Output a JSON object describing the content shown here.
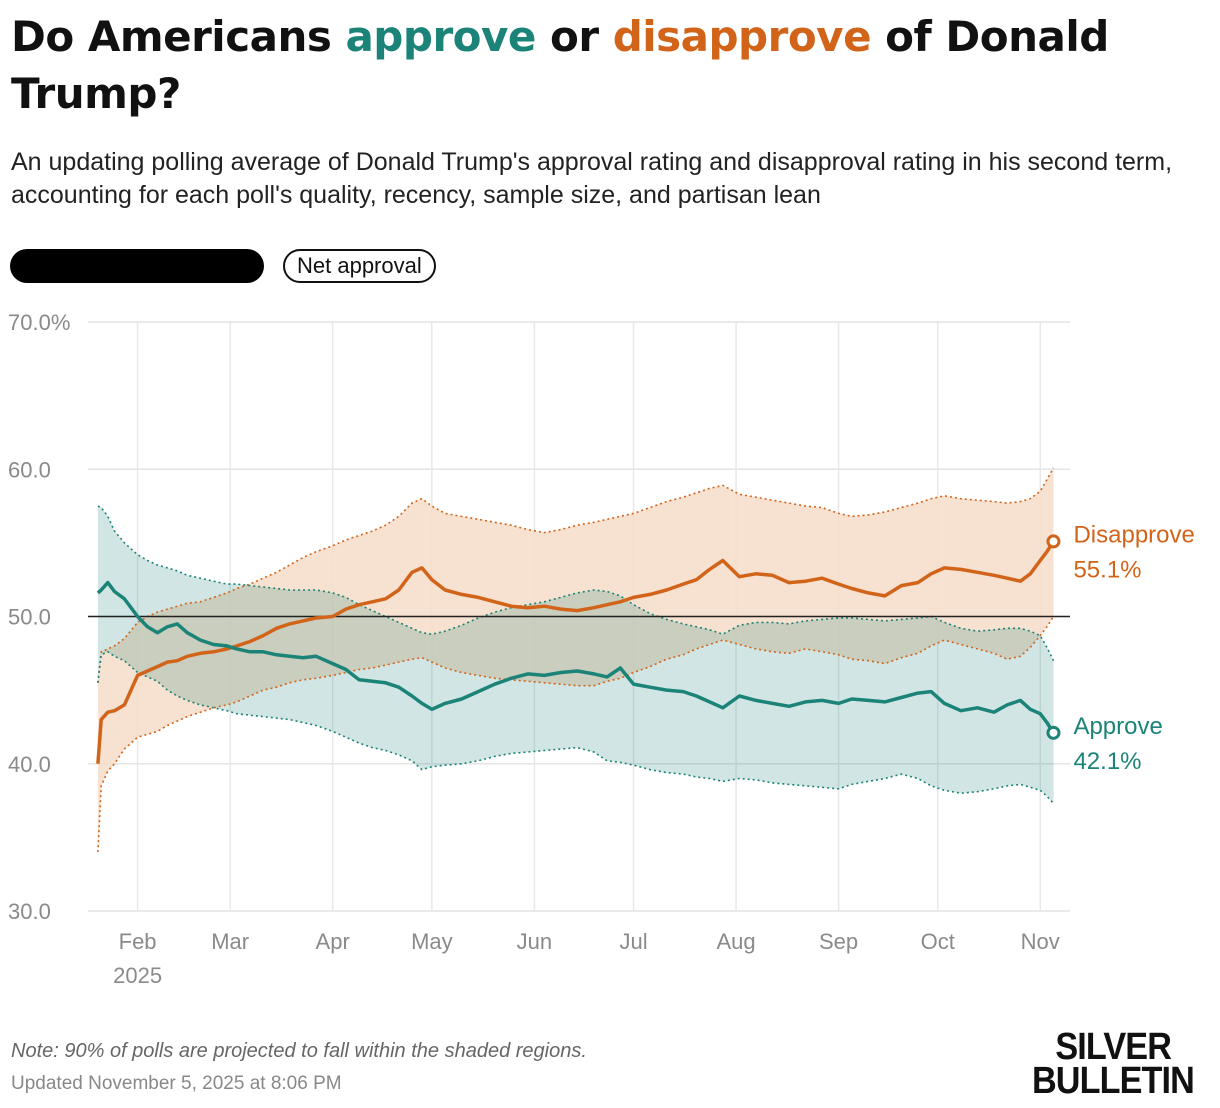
{
  "header": {
    "title_part1": "Do Americans ",
    "title_approve": "approve",
    "title_mid": " or ",
    "title_disapprove": "disapprove",
    "title_part2": " of Donald Trump?",
    "subtitle": "An updating polling average of Donald Trump's approval rating and disapproval rating in his second term, accounting for each poll's quality, recency, sample size, and partisan lean"
  },
  "toggles": {
    "net_label": "Net approval"
  },
  "colors": {
    "approve": "#1b8377",
    "approve_band": "#cfe6e1",
    "disapprove": "#d2641a",
    "disapprove_band": "#f6dcc8",
    "overlap_band": "#d9c9ad"
  },
  "chart_data": {
    "type": "line",
    "title": "Do Americans approve or disapprove of Donald Trump?",
    "xlabel": "",
    "ylabel": "",
    "ylim": [
      30,
      70
    ],
    "y_ticks": [
      "70.0%",
      "60.0",
      "50.0",
      "40.0",
      "30.0"
    ],
    "y_tick_values": [
      70,
      60,
      50,
      40,
      30
    ],
    "reference_line": 50,
    "x_ticks": [
      {
        "label": "Feb",
        "date": "2025-02-01"
      },
      {
        "label": "Mar",
        "date": "2025-03-01"
      },
      {
        "label": "Apr",
        "date": "2025-04-01"
      },
      {
        "label": "May",
        "date": "2025-05-01"
      },
      {
        "label": "Jun",
        "date": "2025-06-01"
      },
      {
        "label": "Jul",
        "date": "2025-07-01"
      },
      {
        "label": "Aug",
        "date": "2025-08-01"
      },
      {
        "label": "Sep",
        "date": "2025-09-01"
      },
      {
        "label": "Oct",
        "date": "2025-10-01"
      },
      {
        "label": "Nov",
        "date": "2025-11-01"
      }
    ],
    "year_label": "2025",
    "grid": true,
    "legend": "end-of-line labels",
    "series": [
      {
        "name": "Disapprove",
        "end_label": "55.1%",
        "x": [
          "2025-01-20",
          "2025-01-21",
          "2025-01-23",
          "2025-01-25",
          "2025-01-28",
          "2025-02-01",
          "2025-02-04",
          "2025-02-07",
          "2025-02-10",
          "2025-02-13",
          "2025-02-16",
          "2025-02-20",
          "2025-02-24",
          "2025-02-28",
          "2025-03-03",
          "2025-03-07",
          "2025-03-11",
          "2025-03-15",
          "2025-03-19",
          "2025-03-23",
          "2025-03-27",
          "2025-04-01",
          "2025-04-05",
          "2025-04-09",
          "2025-04-13",
          "2025-04-17",
          "2025-04-21",
          "2025-04-25",
          "2025-04-28",
          "2025-05-01",
          "2025-05-05",
          "2025-05-10",
          "2025-05-15",
          "2025-05-20",
          "2025-05-25",
          "2025-05-30",
          "2025-06-04",
          "2025-06-09",
          "2025-06-14",
          "2025-06-19",
          "2025-06-23",
          "2025-06-27",
          "2025-07-01",
          "2025-07-06",
          "2025-07-11",
          "2025-07-16",
          "2025-07-20",
          "2025-07-24",
          "2025-07-28",
          "2025-08-02",
          "2025-08-07",
          "2025-08-12",
          "2025-08-17",
          "2025-08-22",
          "2025-08-27",
          "2025-09-01",
          "2025-09-05",
          "2025-09-10",
          "2025-09-15",
          "2025-09-20",
          "2025-09-25",
          "2025-09-29",
          "2025-10-03",
          "2025-10-08",
          "2025-10-13",
          "2025-10-18",
          "2025-10-22",
          "2025-10-26",
          "2025-10-29",
          "2025-11-01",
          "2025-11-03",
          "2025-11-05"
        ],
        "values": [
          40.0,
          43.0,
          43.5,
          43.6,
          44.0,
          46.0,
          46.3,
          46.6,
          46.9,
          47.0,
          47.3,
          47.5,
          47.6,
          47.8,
          48.0,
          48.3,
          48.7,
          49.2,
          49.5,
          49.7,
          49.9,
          50.0,
          50.5,
          50.8,
          51.0,
          51.2,
          51.8,
          53.0,
          53.3,
          52.5,
          51.8,
          51.5,
          51.3,
          51.0,
          50.7,
          50.6,
          50.7,
          50.5,
          50.4,
          50.6,
          50.8,
          51.0,
          51.3,
          51.5,
          51.8,
          52.2,
          52.5,
          53.2,
          53.8,
          52.7,
          52.9,
          52.8,
          52.3,
          52.4,
          52.6,
          52.2,
          51.9,
          51.6,
          51.4,
          52.1,
          52.3,
          52.9,
          53.3,
          53.2,
          53.0,
          52.8,
          52.6,
          52.4,
          52.9,
          53.8,
          54.4,
          55.1
        ],
        "lower": [
          34.0,
          38.5,
          39.5,
          40.0,
          41.0,
          41.8,
          42.0,
          42.2,
          42.6,
          42.9,
          43.2,
          43.5,
          43.8,
          44.0,
          44.2,
          44.6,
          45.0,
          45.2,
          45.5,
          45.7,
          45.8,
          46.0,
          46.2,
          46.4,
          46.5,
          46.7,
          46.9,
          47.1,
          47.2,
          46.9,
          46.5,
          46.2,
          46.0,
          45.8,
          45.7,
          45.6,
          45.5,
          45.4,
          45.3,
          45.3,
          45.6,
          45.8,
          46.2,
          46.6,
          47.1,
          47.4,
          47.8,
          48.1,
          48.4,
          48.1,
          47.8,
          47.6,
          47.5,
          47.8,
          47.6,
          47.4,
          47.1,
          47.0,
          46.8,
          47.2,
          47.5,
          48.0,
          48.4,
          48.1,
          47.8,
          47.5,
          47.1,
          47.3,
          47.9,
          48.7,
          49.3,
          50.0
        ],
        "upper": [
          45.5,
          47.6,
          47.8,
          48.0,
          48.5,
          49.6,
          50.0,
          50.3,
          50.5,
          50.7,
          50.9,
          51.0,
          51.3,
          51.6,
          51.9,
          52.2,
          52.6,
          53.0,
          53.5,
          54.0,
          54.4,
          54.8,
          55.2,
          55.5,
          55.8,
          56.2,
          56.8,
          57.7,
          58.0,
          57.5,
          57.0,
          56.8,
          56.6,
          56.4,
          56.2,
          55.9,
          55.7,
          55.9,
          56.2,
          56.4,
          56.6,
          56.8,
          57.0,
          57.4,
          57.8,
          58.1,
          58.4,
          58.7,
          58.9,
          58.3,
          58.1,
          57.9,
          57.7,
          57.5,
          57.4,
          57.0,
          56.8,
          56.9,
          57.1,
          57.4,
          57.7,
          58.0,
          58.2,
          58.0,
          57.9,
          57.8,
          57.7,
          57.8,
          58.0,
          58.5,
          59.3,
          60.1
        ]
      },
      {
        "name": "Approve",
        "end_label": "42.1%",
        "x": [
          "2025-01-20",
          "2025-01-21",
          "2025-01-23",
          "2025-01-25",
          "2025-01-28",
          "2025-02-01",
          "2025-02-04",
          "2025-02-07",
          "2025-02-10",
          "2025-02-13",
          "2025-02-16",
          "2025-02-20",
          "2025-02-24",
          "2025-02-28",
          "2025-03-03",
          "2025-03-07",
          "2025-03-11",
          "2025-03-15",
          "2025-03-19",
          "2025-03-23",
          "2025-03-27",
          "2025-04-01",
          "2025-04-05",
          "2025-04-09",
          "2025-04-13",
          "2025-04-17",
          "2025-04-21",
          "2025-04-25",
          "2025-04-28",
          "2025-05-01",
          "2025-05-05",
          "2025-05-10",
          "2025-05-15",
          "2025-05-20",
          "2025-05-25",
          "2025-05-30",
          "2025-06-04",
          "2025-06-09",
          "2025-06-14",
          "2025-06-19",
          "2025-06-23",
          "2025-06-27",
          "2025-07-01",
          "2025-07-06",
          "2025-07-11",
          "2025-07-16",
          "2025-07-20",
          "2025-07-24",
          "2025-07-28",
          "2025-08-02",
          "2025-08-07",
          "2025-08-12",
          "2025-08-17",
          "2025-08-22",
          "2025-08-27",
          "2025-09-01",
          "2025-09-05",
          "2025-09-10",
          "2025-09-15",
          "2025-09-20",
          "2025-09-25",
          "2025-09-29",
          "2025-10-03",
          "2025-10-08",
          "2025-10-13",
          "2025-10-18",
          "2025-10-22",
          "2025-10-26",
          "2025-10-29",
          "2025-11-01",
          "2025-11-03",
          "2025-11-05"
        ],
        "values": [
          51.6,
          51.8,
          52.3,
          51.7,
          51.2,
          50.0,
          49.3,
          48.9,
          49.3,
          49.5,
          48.9,
          48.4,
          48.1,
          48.0,
          47.8,
          47.6,
          47.6,
          47.4,
          47.3,
          47.2,
          47.3,
          46.8,
          46.4,
          45.7,
          45.6,
          45.5,
          45.2,
          44.6,
          44.1,
          43.7,
          44.1,
          44.4,
          44.9,
          45.4,
          45.8,
          46.1,
          46.0,
          46.2,
          46.3,
          46.1,
          45.9,
          46.5,
          45.4,
          45.2,
          45.0,
          44.9,
          44.6,
          44.2,
          43.8,
          44.6,
          44.3,
          44.1,
          43.9,
          44.2,
          44.3,
          44.1,
          44.4,
          44.3,
          44.2,
          44.5,
          44.8,
          44.9,
          44.1,
          43.6,
          43.8,
          43.5,
          44.0,
          44.3,
          43.7,
          43.4,
          42.8,
          42.1
        ]
      }
    ],
    "approve_band": {
      "x": [
        "2025-01-20",
        "2025-01-21",
        "2025-01-23",
        "2025-01-25",
        "2025-01-28",
        "2025-02-01",
        "2025-02-04",
        "2025-02-07",
        "2025-02-10",
        "2025-02-13",
        "2025-02-16",
        "2025-02-20",
        "2025-02-24",
        "2025-02-28",
        "2025-03-03",
        "2025-03-07",
        "2025-03-11",
        "2025-03-15",
        "2025-03-19",
        "2025-03-23",
        "2025-03-27",
        "2025-04-01",
        "2025-04-05",
        "2025-04-09",
        "2025-04-13",
        "2025-04-17",
        "2025-04-21",
        "2025-04-25",
        "2025-04-28",
        "2025-05-01",
        "2025-05-05",
        "2025-05-10",
        "2025-05-15",
        "2025-05-20",
        "2025-05-25",
        "2025-05-30",
        "2025-06-04",
        "2025-06-09",
        "2025-06-14",
        "2025-06-19",
        "2025-06-23",
        "2025-06-27",
        "2025-07-01",
        "2025-07-06",
        "2025-07-11",
        "2025-07-16",
        "2025-07-20",
        "2025-07-24",
        "2025-07-28",
        "2025-08-02",
        "2025-08-07",
        "2025-08-12",
        "2025-08-17",
        "2025-08-22",
        "2025-08-27",
        "2025-09-01",
        "2025-09-05",
        "2025-09-10",
        "2025-09-15",
        "2025-09-20",
        "2025-09-25",
        "2025-09-29",
        "2025-10-03",
        "2025-10-08",
        "2025-10-13",
        "2025-10-18",
        "2025-10-22",
        "2025-10-26",
        "2025-10-29",
        "2025-11-01",
        "2025-11-03",
        "2025-11-05"
      ],
      "lower": [
        45.5,
        47.4,
        47.6,
        47.3,
        47.0,
        46.2,
        45.9,
        45.6,
        45.0,
        44.6,
        44.3,
        44.0,
        43.8,
        43.6,
        43.4,
        43.3,
        43.2,
        43.1,
        43.0,
        42.8,
        42.6,
        42.2,
        41.8,
        41.4,
        41.1,
        40.9,
        40.6,
        40.2,
        39.6,
        39.8,
        39.9,
        40.0,
        40.2,
        40.5,
        40.7,
        40.8,
        40.9,
        41.0,
        41.1,
        40.8,
        40.2,
        40.1,
        39.9,
        39.6,
        39.4,
        39.3,
        39.1,
        39.0,
        38.8,
        39.0,
        38.9,
        38.7,
        38.6,
        38.5,
        38.4,
        38.3,
        38.6,
        38.8,
        39.0,
        39.3,
        39.0,
        38.5,
        38.2,
        38.0,
        38.1,
        38.3,
        38.5,
        38.6,
        38.4,
        38.2,
        37.8,
        37.3
      ],
      "upper": [
        57.5,
        57.4,
        56.8,
        55.8,
        55.0,
        54.2,
        53.8,
        53.5,
        53.3,
        53.1,
        52.8,
        52.6,
        52.4,
        52.2,
        52.2,
        52.1,
        52.0,
        51.9,
        51.8,
        51.8,
        51.8,
        51.6,
        51.3,
        50.8,
        50.4,
        50.0,
        49.6,
        49.2,
        48.9,
        48.8,
        49.0,
        49.4,
        49.9,
        50.3,
        50.6,
        50.8,
        51.0,
        51.3,
        51.6,
        51.8,
        51.7,
        51.4,
        50.8,
        50.2,
        49.8,
        49.5,
        49.3,
        49.1,
        48.8,
        49.4,
        49.6,
        49.6,
        49.5,
        49.7,
        49.8,
        49.9,
        49.9,
        49.8,
        49.7,
        49.8,
        49.9,
        50.0,
        49.6,
        49.2,
        49.0,
        49.1,
        49.2,
        49.2,
        49.0,
        48.7,
        47.9,
        47.0
      ]
    }
  },
  "footer": {
    "note": "Note: 90% of polls are projected to fall within the shaded regions.",
    "updated": "Updated November 5, 2025 at 8:06 PM",
    "logo_line1": "SILVER",
    "logo_line2": "BULLETIN"
  }
}
